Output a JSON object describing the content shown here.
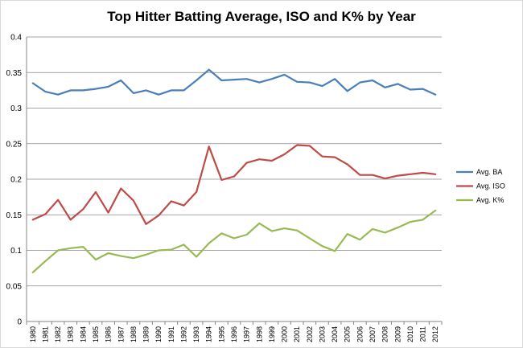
{
  "chart_data": {
    "type": "line",
    "title": "Top Hitter Batting Average, ISO and K% by Year",
    "xlabel": "",
    "ylabel": "",
    "ylim": [
      0,
      0.4
    ],
    "yticks": [
      "0",
      "0.05",
      "0.1",
      "0.15",
      "0.2",
      "0.25",
      "0.3",
      "0.35",
      "0.4"
    ],
    "grid": "horizontal",
    "legend_position": "right",
    "categories": [
      "1980",
      "1981",
      "1982",
      "1983",
      "1984",
      "1985",
      "1986",
      "1987",
      "1988",
      "1989",
      "1990",
      "1991",
      "1992",
      "1993",
      "1994",
      "1995",
      "1996",
      "1997",
      "1998",
      "1999",
      "2000",
      "2001",
      "2002",
      "2003",
      "2004",
      "2005",
      "2006",
      "2007",
      "2008",
      "2009",
      "2010",
      "2011",
      "2012"
    ],
    "series": [
      {
        "name": "Avg. BA",
        "color": "#4a7ebb",
        "values": [
          0.335,
          0.323,
          0.319,
          0.325,
          0.325,
          0.327,
          0.33,
          0.339,
          0.321,
          0.325,
          0.319,
          0.325,
          0.325,
          0.339,
          0.354,
          0.339,
          0.34,
          0.341,
          0.336,
          0.341,
          0.347,
          0.337,
          0.336,
          0.331,
          0.341,
          0.324,
          0.336,
          0.339,
          0.329,
          0.334,
          0.326,
          0.327,
          0.319
        ]
      },
      {
        "name": "Avg. ISO",
        "color": "#be4b48",
        "values": [
          0.143,
          0.151,
          0.171,
          0.143,
          0.158,
          0.182,
          0.153,
          0.187,
          0.17,
          0.137,
          0.149,
          0.169,
          0.163,
          0.182,
          0.246,
          0.199,
          0.204,
          0.223,
          0.228,
          0.226,
          0.235,
          0.248,
          0.247,
          0.232,
          0.231,
          0.221,
          0.206,
          0.206,
          0.201,
          0.205,
          0.207,
          0.209,
          0.207
        ]
      },
      {
        "name": "Avg. K%",
        "color": "#98b954",
        "values": [
          0.069,
          0.085,
          0.1,
          0.103,
          0.105,
          0.087,
          0.096,
          0.092,
          0.089,
          0.094,
          0.1,
          0.101,
          0.108,
          0.091,
          0.11,
          0.124,
          0.117,
          0.122,
          0.138,
          0.127,
          0.131,
          0.128,
          0.117,
          0.106,
          0.099,
          0.123,
          0.115,
          0.13,
          0.125,
          0.132,
          0.14,
          0.143,
          0.156
        ]
      }
    ]
  }
}
